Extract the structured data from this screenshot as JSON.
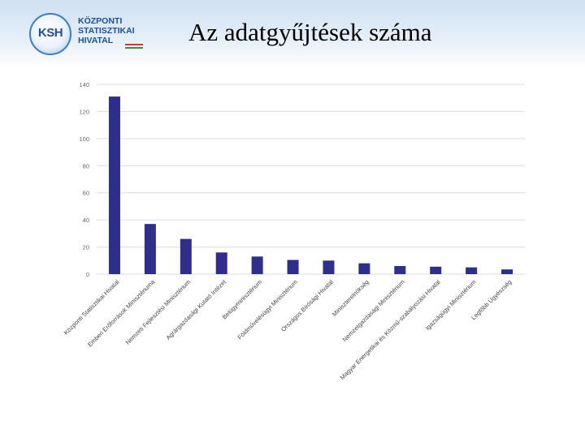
{
  "header": {
    "logo_text": "KSH",
    "logo_lines": [
      "KÖZPONTI",
      "STATISZTIKAI",
      "HIVATAL"
    ],
    "title": "Az adatgyűjtések száma"
  },
  "colors": {
    "bar": "#2e2f8c",
    "grid": "#dcdcdc",
    "tick_text": "#666666",
    "label_text": "#444444"
  },
  "chart_data": {
    "type": "bar",
    "categories": [
      "Központi Statisztikai Hivatal",
      "Emberi Erőforrások Minisztériuma",
      "Nemzeti Fejlesztési Minisztérium",
      "Agrárgazdasági Kutató Intézet",
      "Belügyminisztérium",
      "Földművelésügyi Minisztérium",
      "Országos Bírósági Hivatal",
      "Miniszterelnökség",
      "Nemzetgazdasági Minisztérium",
      "Magyar Energetikai és Közmű-szabályozási Hivatal",
      "Igazságügyi Minisztérium",
      "Legfőbb Ügyészség"
    ],
    "values": [
      131,
      37,
      26,
      16,
      13,
      10.5,
      10,
      8,
      6,
      5.5,
      5,
      3.5
    ],
    "ylim": [
      0,
      140
    ],
    "yticks": [
      "0",
      "20",
      "40",
      "60",
      "80",
      "100",
      "120",
      "140"
    ],
    "grid": true,
    "legend": "none"
  }
}
